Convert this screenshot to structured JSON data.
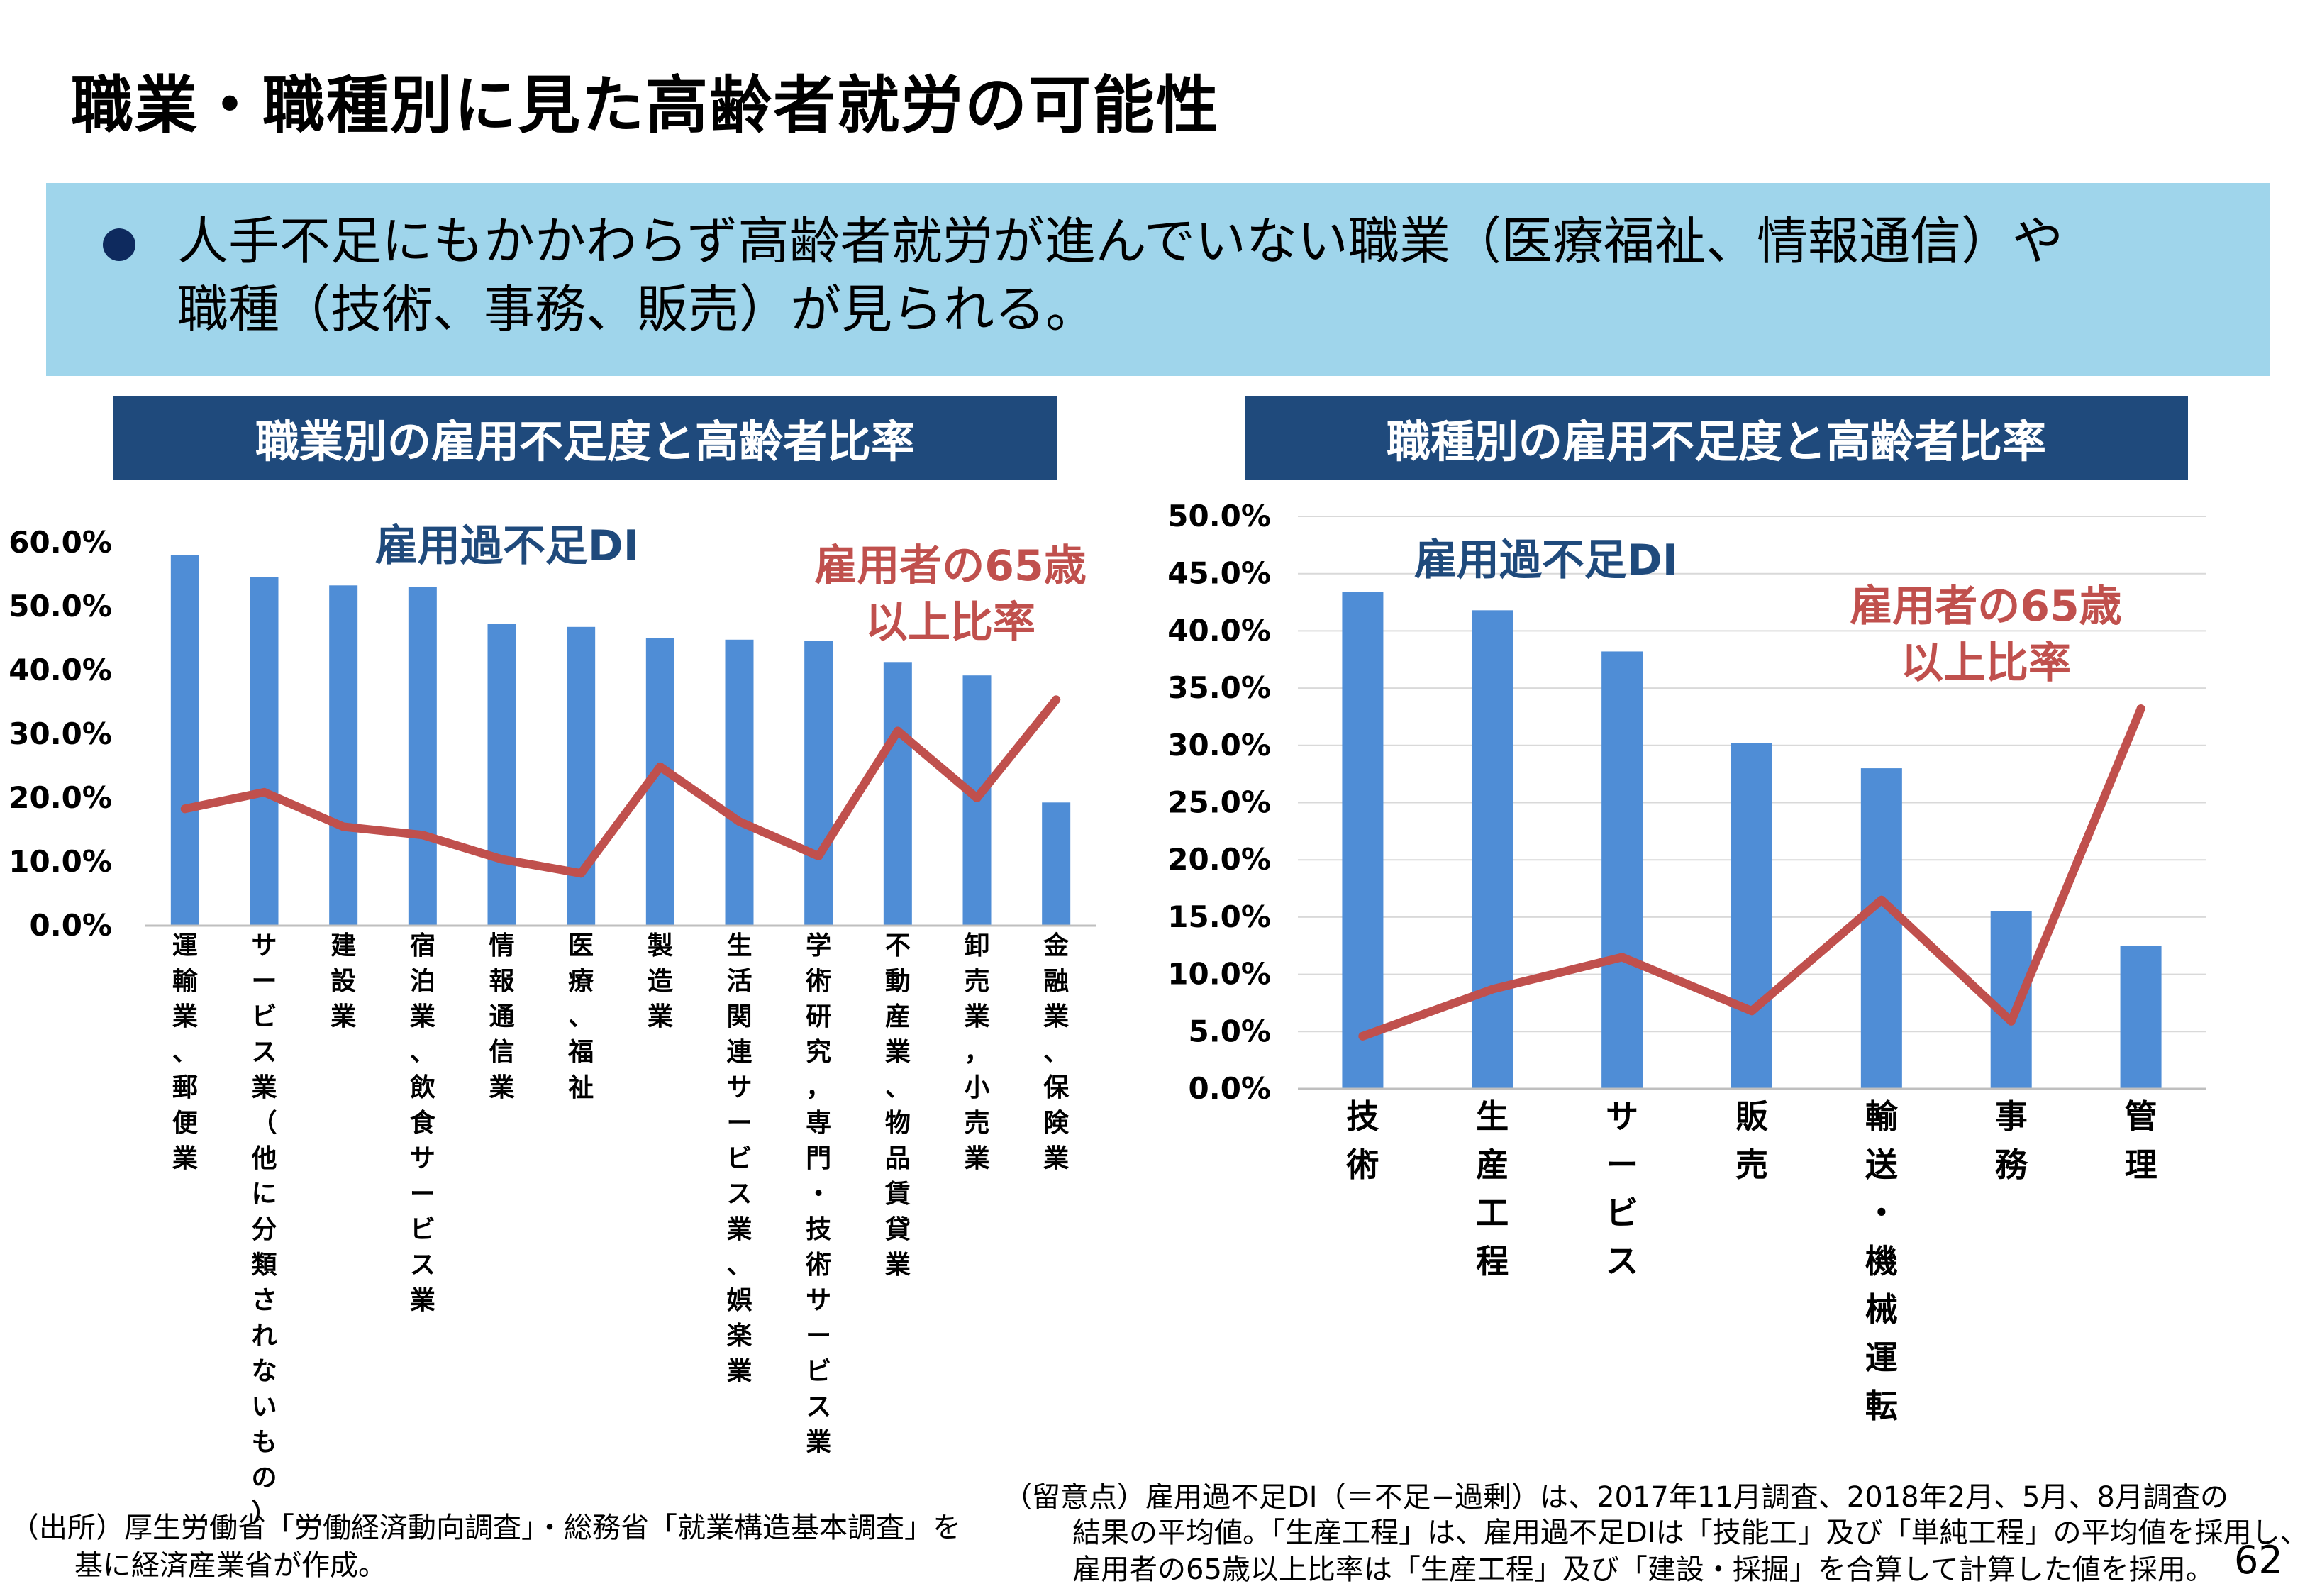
{
  "title": "職業・職種別に見た高齢者就労の可能性",
  "summary": {
    "line1": "人手不足にもかかわらず高齢者就労が進んでいない職業（医療福祉、情報通信）や",
    "line2": "職種（技術、事務、販売）が見られる。"
  },
  "colors": {
    "bar": "#4f8dd6",
    "line": "#c0504d",
    "header_bg": "#1f4a7c",
    "summary_bg": "#9fd5eb",
    "di_label": "#1f4a7c",
    "ratio_label": "#c0504d"
  },
  "chart_data": [
    {
      "type": "bar",
      "header": "職業別の雇用不足度と高齢者比率",
      "categories": [
        "運輸業、郵便業",
        "サービス業（他に分類されないもの）",
        "建設業",
        "宿泊業、飲食サービス業",
        "情報通信業",
        "医療、福祉",
        "製造業",
        "生活関連サービス業、娯楽業",
        "学術研究，専門・技術サービス業",
        "不動産業、物品賃貸業",
        "卸売業，小売業",
        "金融業、保険業"
      ],
      "series": [
        {
          "name": "雇用過不足DI",
          "type": "bar",
          "values": [
            58.0,
            54.6,
            53.3,
            53.0,
            47.3,
            46.8,
            45.1,
            44.8,
            44.6,
            41.3,
            39.2,
            19.3
          ]
        },
        {
          "name": "雇用者の65歳以上比率",
          "type": "line",
          "values": [
            18.3,
            20.9,
            15.5,
            14.2,
            10.4,
            8.2,
            24.9,
            16.3,
            10.9,
            30.5,
            20.0,
            35.4
          ]
        }
      ],
      "y_ticks": [
        "0.0%",
        "10.0%",
        "20.0%",
        "30.0%",
        "40.0%",
        "50.0%",
        "60.0%"
      ],
      "ylim": [
        0,
        60
      ],
      "series_labels": {
        "di": "雇用過不足DI",
        "ratio_line1": "雇用者の65歳",
        "ratio_line2": "以上比率"
      }
    },
    {
      "type": "bar",
      "header": "職種別の雇用不足度と高齢者比率",
      "categories": [
        "技術",
        "生産工程",
        "サービス",
        "販売",
        "輸送・機械運転",
        "事務",
        "管理"
      ],
      "series": [
        {
          "name": "雇用過不足DI",
          "type": "bar",
          "values": [
            43.4,
            41.8,
            38.2,
            30.2,
            28.0,
            15.5,
            12.5
          ]
        },
        {
          "name": "雇用者の65歳以上比率",
          "type": "line",
          "values": [
            4.6,
            8.7,
            11.5,
            6.8,
            16.5,
            5.9,
            33.2
          ]
        }
      ],
      "y_ticks": [
        "0.0%",
        "5.0%",
        "10.0%",
        "15.0%",
        "20.0%",
        "25.0%",
        "30.0%",
        "35.0%",
        "40.0%",
        "45.0%",
        "50.0%"
      ],
      "ylim": [
        0,
        50
      ],
      "series_labels": {
        "di": "雇用過不足DI",
        "ratio_line1": "雇用者の65歳",
        "ratio_line2": "以上比率"
      }
    }
  ],
  "footnotes": {
    "source_line1": "（出所）厚生労働省「労働経済動向調査」・総務省「就業構造基本調査」を",
    "source_line2": "基に経済産業省が作成。",
    "caveat_line1": "（留意点）雇用過不足DI（＝不足−過剰）は、2017年11月調査、2018年2月、5月、8月調査の",
    "caveat_line2": "結果の平均値。「生産工程」は、雇用過不足DIは「技能工」及び「単純工程」の平均値を採用し、",
    "caveat_line3": "雇用者の65歳以上比率は「生産工程」及び「建設・採掘」を合算して計算した値を採用。"
  },
  "page_number": "62"
}
